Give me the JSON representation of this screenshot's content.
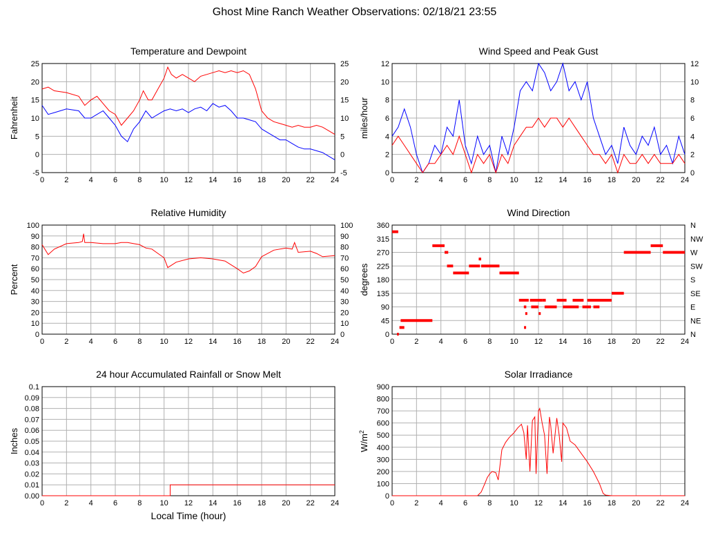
{
  "page_title": "Ghost Mine Ranch Weather Observations: 02/18/21 23:55",
  "x_axis_label": "Local Time (hour)",
  "colors": {
    "primary": "#ff0000",
    "secondary": "#0000ff",
    "grid": "#b0b0b0"
  },
  "chart_data": [
    {
      "id": "temp",
      "type": "line",
      "title": "Temperature and Dewpoint",
      "ylabel": "Fahrenheit",
      "xlim": [
        0,
        24
      ],
      "ylim": [
        -5,
        25
      ],
      "xticks": [
        0,
        2,
        4,
        6,
        8,
        10,
        12,
        14,
        16,
        18,
        20,
        22,
        24
      ],
      "yticks": [
        -5,
        0,
        5,
        10,
        15,
        20,
        25
      ],
      "right_ticks": [
        "-5",
        "0",
        "5",
        "10",
        "15",
        "20",
        "25"
      ],
      "series": [
        {
          "color": "#ff0000",
          "x": [
            0,
            0.5,
            1,
            2,
            3,
            3.5,
            4,
            4.5,
            5,
            5.5,
            6,
            6.5,
            7,
            7.5,
            8,
            8.3,
            8.7,
            9,
            9.5,
            10,
            10.3,
            10.6,
            11,
            11.5,
            12,
            12.5,
            13,
            13.5,
            14,
            14.5,
            15,
            15.5,
            16,
            16.5,
            17,
            17.5,
            18,
            18.5,
            19,
            19.5,
            20,
            20.5,
            21,
            21.5,
            22,
            22.5,
            23,
            23.5,
            24
          ],
          "y": [
            18,
            18.5,
            17.5,
            17,
            16,
            13.5,
            15,
            16,
            14,
            12,
            11,
            8,
            10,
            12,
            15,
            17.5,
            15,
            15,
            18,
            21,
            24,
            22,
            21,
            22,
            21,
            20,
            21.5,
            22,
            22.5,
            23,
            22.5,
            23,
            22.5,
            23,
            22,
            18,
            12,
            10,
            9,
            8.5,
            8,
            7.5,
            8,
            7.5,
            7.5,
            8,
            7.5,
            6.5,
            5.5
          ]
        },
        {
          "color": "#0000ff",
          "x": [
            0,
            0.3,
            0.5,
            1,
            2,
            3,
            3.5,
            4,
            4.5,
            5,
            5.5,
            6,
            6.5,
            7,
            7.5,
            8,
            8.5,
            9,
            9.5,
            10,
            10.5,
            11,
            11.5,
            12,
            12.5,
            13,
            13.5,
            14,
            14.5,
            15,
            15.5,
            16,
            16.5,
            17,
            17.5,
            18,
            18.5,
            19,
            19.5,
            20,
            20.5,
            21,
            21.5,
            22,
            22.5,
            23,
            23.5,
            24
          ],
          "y": [
            13.5,
            12,
            11,
            11.5,
            12.5,
            12,
            10,
            10,
            11,
            12,
            10,
            8,
            5,
            3.5,
            7,
            9,
            12,
            10,
            11,
            12,
            12.5,
            12,
            12.5,
            11.5,
            12.5,
            13,
            12,
            14,
            13,
            13.5,
            12,
            10,
            10,
            9.5,
            9,
            7,
            6,
            5,
            4,
            4,
            3,
            2,
            1.5,
            1.5,
            1,
            0.5,
            -0.5,
            -1.5
          ]
        }
      ]
    },
    {
      "id": "wind",
      "type": "line",
      "title": "Wind Speed and Peak Gust",
      "ylabel": "miles/hour",
      "xlim": [
        0,
        24
      ],
      "ylim": [
        0,
        12
      ],
      "xticks": [
        0,
        2,
        4,
        6,
        8,
        10,
        12,
        14,
        16,
        18,
        20,
        22,
        24
      ],
      "yticks": [
        0,
        2,
        4,
        6,
        8,
        10,
        12
      ],
      "right_ticks": [
        "0",
        "2",
        "4",
        "6",
        "8",
        "10",
        "12"
      ],
      "series": [
        {
          "color": "#0000ff",
          "x": [
            0,
            0.5,
            1,
            1.5,
            2,
            2.5,
            3,
            3.5,
            4,
            4.5,
            5,
            5.5,
            6,
            6.5,
            7,
            7.5,
            8,
            8.5,
            9,
            9.5,
            10,
            10.5,
            11,
            11.5,
            12,
            12.5,
            13,
            13.5,
            14,
            14.5,
            15,
            15.5,
            16,
            16.5,
            17,
            17.5,
            18,
            18.5,
            19,
            19.5,
            20,
            20.5,
            21,
            21.5,
            22,
            22.5,
            23,
            23.5,
            24
          ],
          "y": [
            4,
            5,
            7,
            5,
            2,
            0,
            1,
            3,
            2,
            5,
            4,
            8,
            3,
            1,
            4,
            2,
            3,
            0,
            4,
            2,
            5,
            9,
            10,
            9,
            12,
            11,
            9,
            10,
            12,
            9,
            10,
            8,
            10,
            6,
            4,
            2,
            3,
            1,
            5,
            3,
            2,
            4,
            3,
            5,
            2,
            3,
            1,
            4,
            2
          ]
        },
        {
          "color": "#ff0000",
          "x": [
            0,
            0.5,
            1,
            1.5,
            2,
            2.5,
            3,
            3.5,
            4,
            4.5,
            5,
            5.5,
            6,
            6.5,
            7,
            7.5,
            8,
            8.5,
            9,
            9.5,
            10,
            10.5,
            11,
            11.5,
            12,
            12.5,
            13,
            13.5,
            14,
            14.5,
            15,
            15.5,
            16,
            16.5,
            17,
            17.5,
            18,
            18.5,
            19,
            19.5,
            20,
            20.5,
            21,
            21.5,
            22,
            22.5,
            23,
            23.5,
            24
          ],
          "y": [
            3,
            4,
            3,
            2,
            1,
            0,
            1,
            1,
            2,
            3,
            2,
            4,
            2,
            0,
            2,
            1,
            2,
            0,
            2,
            1,
            3,
            4,
            5,
            5,
            6,
            5,
            6,
            6,
            5,
            6,
            5,
            4,
            3,
            2,
            2,
            1,
            2,
            0,
            2,
            1,
            1,
            2,
            1,
            2,
            1,
            1,
            1,
            2,
            1
          ]
        }
      ]
    },
    {
      "id": "humidity",
      "type": "line",
      "title": "Relative Humidity",
      "ylabel": "Percent",
      "xlim": [
        0,
        24
      ],
      "ylim": [
        0,
        100
      ],
      "xticks": [
        0,
        2,
        4,
        6,
        8,
        10,
        12,
        14,
        16,
        18,
        20,
        22,
        24
      ],
      "yticks": [
        0,
        10,
        20,
        30,
        40,
        50,
        60,
        70,
        80,
        90,
        100
      ],
      "right_ticks": [
        "0",
        "10",
        "20",
        "30",
        "40",
        "50",
        "60",
        "70",
        "80",
        "90",
        "100"
      ],
      "series": [
        {
          "color": "#ff0000",
          "x": [
            0,
            0.5,
            1,
            2,
            3,
            3.3,
            3.4,
            3.5,
            4,
            5,
            6,
            6.5,
            7,
            8,
            8.5,
            9,
            9.5,
            10,
            10.3,
            11,
            12,
            13,
            14,
            15,
            16,
            16.5,
            17,
            17.5,
            18,
            19,
            20,
            20.5,
            20.7,
            21,
            22,
            22.5,
            23,
            24
          ],
          "y": [
            82,
            73,
            78,
            83,
            84,
            85,
            92,
            84,
            84,
            83,
            83,
            84,
            84,
            82,
            79,
            78,
            74,
            70,
            61,
            66,
            69,
            70,
            69,
            67,
            60,
            56,
            58,
            62,
            71,
            77,
            79,
            78,
            84,
            75,
            76,
            74,
            71,
            72
          ]
        }
      ]
    },
    {
      "id": "direction",
      "type": "scatter",
      "title": "Wind Direction",
      "ylabel": "degrees",
      "xlim": [
        0,
        24
      ],
      "ylim": [
        0,
        360
      ],
      "xticks": [
        0,
        2,
        4,
        6,
        8,
        10,
        12,
        14,
        16,
        18,
        20,
        22,
        24
      ],
      "yticks": [
        0,
        45,
        90,
        135,
        180,
        225,
        270,
        315,
        360
      ],
      "right_ticks": [
        "N",
        "NE",
        "E",
        "SE",
        "S",
        "SW",
        "W",
        "NW",
        "N"
      ],
      "segments": [
        {
          "x0": 0,
          "x1": 0.5,
          "y": 338
        },
        {
          "x0": 0.4,
          "x1": 0.55,
          "y": 0
        },
        {
          "x0": 0.6,
          "x1": 1,
          "y": 22
        },
        {
          "x0": 0.7,
          "x1": 3.3,
          "y": 45
        },
        {
          "x0": 3.3,
          "x1": 4.3,
          "y": 292
        },
        {
          "x0": 4.3,
          "x1": 4.6,
          "y": 270
        },
        {
          "x0": 4.5,
          "x1": 5,
          "y": 225
        },
        {
          "x0": 5,
          "x1": 6.3,
          "y": 202
        },
        {
          "x0": 6.3,
          "x1": 7.2,
          "y": 225
        },
        {
          "x0": 7.1,
          "x1": 7.3,
          "y": 248
        },
        {
          "x0": 7.3,
          "x1": 8.8,
          "y": 225
        },
        {
          "x0": 8.8,
          "x1": 10.4,
          "y": 202
        },
        {
          "x0": 10.4,
          "x1": 11.2,
          "y": 112
        },
        {
          "x0": 10.8,
          "x1": 11,
          "y": 90
        },
        {
          "x0": 11.3,
          "x1": 12.3,
          "y": 112
        },
        {
          "x0": 11.4,
          "x1": 12,
          "y": 90
        },
        {
          "x0": 12.3,
          "x1": 12.6,
          "y": 112
        },
        {
          "x0": 12.5,
          "x1": 13.5,
          "y": 90
        },
        {
          "x0": 13.5,
          "x1": 14.3,
          "y": 112
        },
        {
          "x0": 14,
          "x1": 15.3,
          "y": 90
        },
        {
          "x0": 14.8,
          "x1": 15.7,
          "y": 112
        },
        {
          "x0": 15.6,
          "x1": 16.3,
          "y": 90
        },
        {
          "x0": 16,
          "x1": 18,
          "y": 112
        },
        {
          "x0": 16.5,
          "x1": 17,
          "y": 90
        },
        {
          "x0": 18,
          "x1": 19,
          "y": 135
        },
        {
          "x0": 19,
          "x1": 21.2,
          "y": 270
        },
        {
          "x0": 21.2,
          "x1": 22.2,
          "y": 292
        },
        {
          "x0": 22.2,
          "x1": 24,
          "y": 270
        }
      ],
      "points": [
        {
          "x": 11,
          "y": 68
        },
        {
          "x": 10.9,
          "y": 22
        },
        {
          "x": 12.1,
          "y": 68
        }
      ]
    },
    {
      "id": "rain",
      "type": "line",
      "title": "24 hour Accumulated Rainfall or Snow Melt",
      "ylabel": "Inches",
      "xlim": [
        0,
        24
      ],
      "ylim": [
        0,
        0.1
      ],
      "xticks": [
        0,
        2,
        4,
        6,
        8,
        10,
        12,
        14,
        16,
        18,
        20,
        22,
        24
      ],
      "yticks": [
        0,
        0.01,
        0.02,
        0.03,
        0.04,
        0.05,
        0.06,
        0.07,
        0.08,
        0.09,
        0.1
      ],
      "ytick_labels": [
        "0.00",
        "0.01",
        "0.02",
        "0.03",
        "0.04",
        "0.05",
        "0.06",
        "0.07",
        "0.08",
        "0.09",
        "0.1"
      ],
      "series": [
        {
          "color": "#ff0000",
          "x": [
            0,
            10.5,
            10.5,
            24
          ],
          "y": [
            0,
            0,
            0.01,
            0.01
          ]
        }
      ]
    },
    {
      "id": "solar",
      "type": "line",
      "title": "Solar Irradiance",
      "ylabel": "W/m",
      "ylabel_sup": "2",
      "xlim": [
        0,
        24
      ],
      "ylim": [
        0,
        900
      ],
      "xticks": [
        0,
        2,
        4,
        6,
        8,
        10,
        12,
        14,
        16,
        18,
        20,
        22,
        24
      ],
      "yticks": [
        0,
        100,
        200,
        300,
        400,
        500,
        600,
        700,
        800,
        900
      ],
      "series": [
        {
          "color": "#ff0000",
          "x": [
            0,
            7,
            7.3,
            7.6,
            7.8,
            8,
            8.2,
            8.5,
            8.7,
            9,
            9.3,
            9.6,
            10,
            10.3,
            10.6,
            10.8,
            11,
            11.1,
            11.3,
            11.5,
            11.7,
            11.8,
            12,
            12.1,
            12.3,
            12.5,
            12.7,
            12.9,
            13,
            13.2,
            13.5,
            13.7,
            13.9,
            14,
            14.3,
            14.6,
            15,
            15.5,
            16,
            16.5,
            17,
            17.3,
            17.5,
            18,
            24
          ],
          "y": [
            0,
            0,
            30,
            100,
            150,
            180,
            200,
            190,
            130,
            380,
            440,
            480,
            520,
            560,
            590,
            520,
            300,
            580,
            200,
            620,
            650,
            180,
            700,
            720,
            600,
            500,
            180,
            650,
            580,
            350,
            640,
            500,
            280,
            600,
            560,
            450,
            420,
            350,
            280,
            200,
            100,
            20,
            5,
            0,
            0
          ]
        }
      ]
    }
  ]
}
